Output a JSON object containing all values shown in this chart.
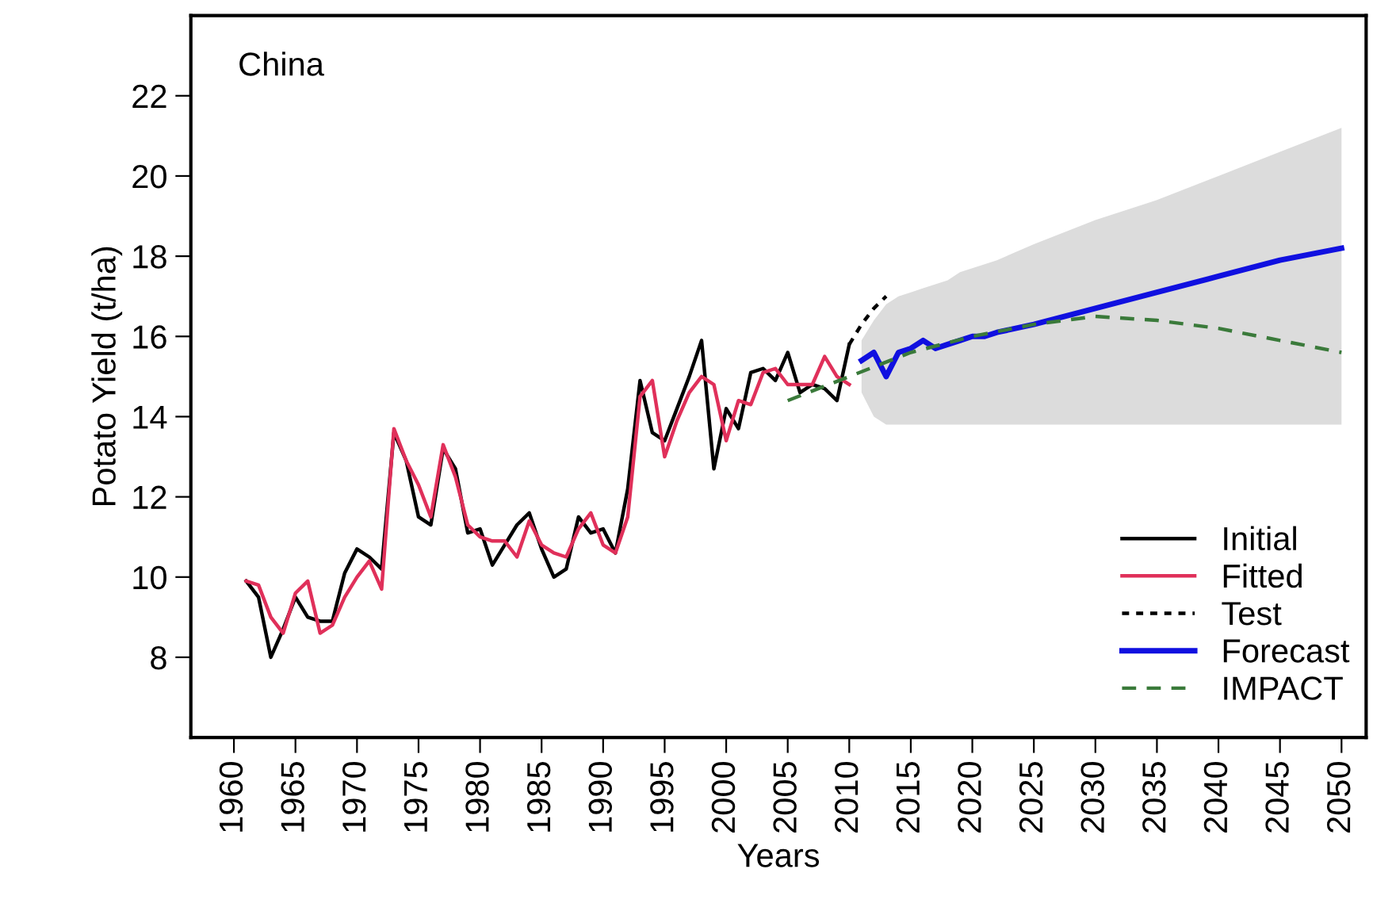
{
  "chart_data": {
    "type": "line",
    "xlabel": "Years",
    "ylabel": "Potato Yield (t/ha)",
    "annotations": [
      "China"
    ],
    "xlim": [
      1956.5,
      2052
    ],
    "ylim": [
      6,
      24
    ],
    "xticks": [
      1960,
      1965,
      1970,
      1975,
      1980,
      1985,
      1990,
      1995,
      2000,
      2005,
      2010,
      2015,
      2020,
      2025,
      2030,
      2035,
      2040,
      2045,
      2050
    ],
    "yticks": [
      8,
      10,
      12,
      14,
      16,
      18,
      20,
      22
    ],
    "grid": false,
    "legend": "bottom right",
    "marker": "none",
    "series": [
      {
        "name": "Initial",
        "color": "#000000",
        "line_style": "solid",
        "x": [
          1961,
          1962,
          1963,
          1964,
          1965,
          1966,
          1967,
          1968,
          1969,
          1970,
          1971,
          1972,
          1973,
          1974,
          1975,
          1976,
          1977,
          1978,
          1979,
          1980,
          1981,
          1982,
          1983,
          1984,
          1985,
          1986,
          1987,
          1988,
          1989,
          1990,
          1991,
          1992,
          1993,
          1994,
          1995,
          1996,
          1997,
          1998,
          1999,
          2000,
          2001,
          2002,
          2003,
          2004,
          2005,
          2006,
          2007,
          2008,
          2009,
          2010
        ],
        "values": [
          9.9,
          9.5,
          8.0,
          8.7,
          9.5,
          9.0,
          8.9,
          8.9,
          10.1,
          10.7,
          10.5,
          10.2,
          13.6,
          12.9,
          11.5,
          11.3,
          13.2,
          12.7,
          11.1,
          11.2,
          10.3,
          10.8,
          11.3,
          11.6,
          10.7,
          10.0,
          10.2,
          11.5,
          11.1,
          11.2,
          10.6,
          12.2,
          14.9,
          13.6,
          13.4,
          14.2,
          15.0,
          15.9,
          12.7,
          14.2,
          13.7,
          15.1,
          15.2,
          14.9,
          15.6,
          14.6,
          14.8,
          14.7,
          14.4,
          15.8
        ]
      },
      {
        "name": "Fitted",
        "color": "#e0305a",
        "line_style": "solid",
        "x": [
          1961,
          1962,
          1963,
          1964,
          1965,
          1966,
          1967,
          1968,
          1969,
          1970,
          1971,
          1972,
          1973,
          1974,
          1975,
          1976,
          1977,
          1978,
          1979,
          1980,
          1981,
          1982,
          1983,
          1984,
          1985,
          1986,
          1987,
          1988,
          1989,
          1990,
          1991,
          1992,
          1993,
          1994,
          1995,
          1996,
          1997,
          1998,
          1999,
          2000,
          2001,
          2002,
          2003,
          2004,
          2005,
          2006,
          2007,
          2008,
          2009,
          2010
        ],
        "values": [
          9.9,
          9.8,
          9.0,
          8.6,
          9.6,
          9.9,
          8.6,
          8.8,
          9.5,
          10.0,
          10.4,
          9.7,
          13.7,
          12.9,
          12.3,
          11.5,
          13.3,
          12.5,
          11.3,
          11.0,
          10.9,
          10.9,
          10.5,
          11.4,
          10.8,
          10.6,
          10.5,
          11.2,
          11.6,
          10.8,
          10.6,
          11.5,
          14.5,
          14.9,
          13.0,
          13.9,
          14.6,
          15.0,
          14.8,
          13.4,
          14.4,
          14.3,
          15.1,
          15.2,
          14.8,
          14.8,
          14.8,
          15.5,
          15.0,
          14.8
        ]
      },
      {
        "name": "Test",
        "color": "#000000",
        "line_style": "dotted",
        "x": [
          2010,
          2011,
          2012,
          2013
        ],
        "values": [
          15.8,
          16.3,
          16.7,
          17.0
        ]
      },
      {
        "name": "Forecast",
        "color": "#1010e0",
        "line_style": "solid",
        "x": [
          2011,
          2012,
          2013,
          2014,
          2015,
          2016,
          2017,
          2018,
          2019,
          2020,
          2021,
          2022,
          2025,
          2030,
          2035,
          2040,
          2045,
          2050
        ],
        "values": [
          15.4,
          15.6,
          15.0,
          15.6,
          15.7,
          15.9,
          15.7,
          15.8,
          15.9,
          16.0,
          16.0,
          16.1,
          16.3,
          16.7,
          17.1,
          17.5,
          17.9,
          18.2
        ],
        "lower": [
          14.6,
          14.0,
          13.8,
          13.8,
          13.8,
          13.8,
          13.8,
          13.8,
          13.8,
          13.8,
          13.8,
          13.8,
          13.8,
          13.8,
          13.8,
          13.8,
          13.8,
          13.8
        ],
        "upper": [
          15.9,
          16.4,
          16.8,
          17.0,
          17.1,
          17.2,
          17.3,
          17.4,
          17.6,
          17.7,
          17.8,
          17.9,
          18.3,
          18.9,
          19.4,
          20.0,
          20.6,
          21.2
        ]
      },
      {
        "name": "IMPACT",
        "color": "#3a7a3a",
        "line_style": "dashed",
        "x": [
          2005,
          2010,
          2015,
          2020,
          2025,
          2030,
          2035,
          2040,
          2045,
          2050
        ],
        "values": [
          14.4,
          15.0,
          15.6,
          16.0,
          16.3,
          16.5,
          16.4,
          16.2,
          15.9,
          15.6
        ]
      }
    ]
  }
}
